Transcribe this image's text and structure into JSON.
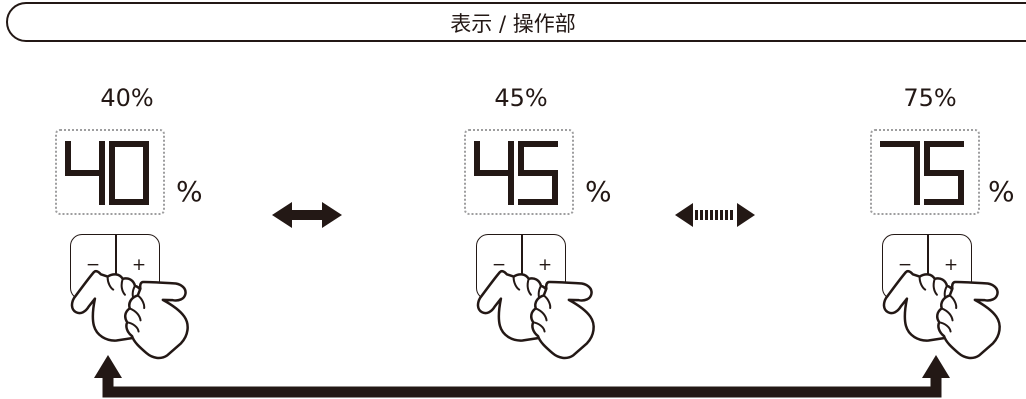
{
  "header": {
    "title": "表示 / 操作部"
  },
  "displays": [
    {
      "label": "40%",
      "digits": [
        "4",
        "0"
      ],
      "unit": "%",
      "minus_label": "−",
      "plus_label": "+"
    },
    {
      "label": "45%",
      "digits": [
        "4",
        "5"
      ],
      "unit": "%",
      "minus_label": "−",
      "plus_label": "+"
    },
    {
      "label": "75%",
      "digits": [
        "7",
        "5"
      ],
      "unit": "%",
      "minus_label": "−",
      "plus_label": "+"
    }
  ],
  "colors": {
    "ink": "#231815",
    "dotted_border": "#9e9e9f"
  },
  "icons": [
    "double-arrow-icon",
    "dotted-double-arrow-icon",
    "hand-pointer-icon",
    "loop-arrow-icon"
  ]
}
